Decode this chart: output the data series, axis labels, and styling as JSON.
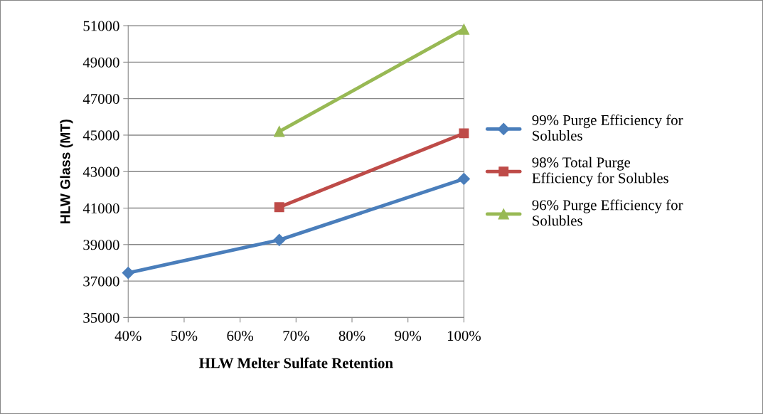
{
  "chart_data": {
    "type": "line",
    "xlabel": "HLW Melter Sulfate Retention",
    "ylabel": "HLW Glass (MT)",
    "xlim": [
      40,
      100
    ],
    "xticks": [
      {
        "value": 40,
        "label": "40%"
      },
      {
        "value": 50,
        "label": "50%"
      },
      {
        "value": 60,
        "label": "60%"
      },
      {
        "value": 70,
        "label": "70%"
      },
      {
        "value": 80,
        "label": "80%"
      },
      {
        "value": 90,
        "label": "90%"
      },
      {
        "value": 100,
        "label": "100%"
      }
    ],
    "ylim": [
      35000,
      51000
    ],
    "yticks": [
      35000,
      37000,
      39000,
      41000,
      43000,
      45000,
      47000,
      49000,
      51000
    ],
    "grid": "y",
    "legend": "right",
    "line_style": "solid",
    "series": [
      {
        "name": "99% Purge Efficiency for Solubles",
        "color": "#4a7ebb",
        "marker": "diamond",
        "x": [
          40,
          67,
          100
        ],
        "values": [
          37450,
          39250,
          42600
        ]
      },
      {
        "name": "98% Total Purge Efficiency for Solubles",
        "color": "#be4b48",
        "marker": "square",
        "x": [
          67,
          100
        ],
        "values": [
          41050,
          45100
        ]
      },
      {
        "name": "96% Purge Efficiency for Solubles",
        "color": "#98b954",
        "marker": "triangle",
        "x": [
          67,
          100
        ],
        "values": [
          45200,
          50800
        ]
      }
    ]
  }
}
